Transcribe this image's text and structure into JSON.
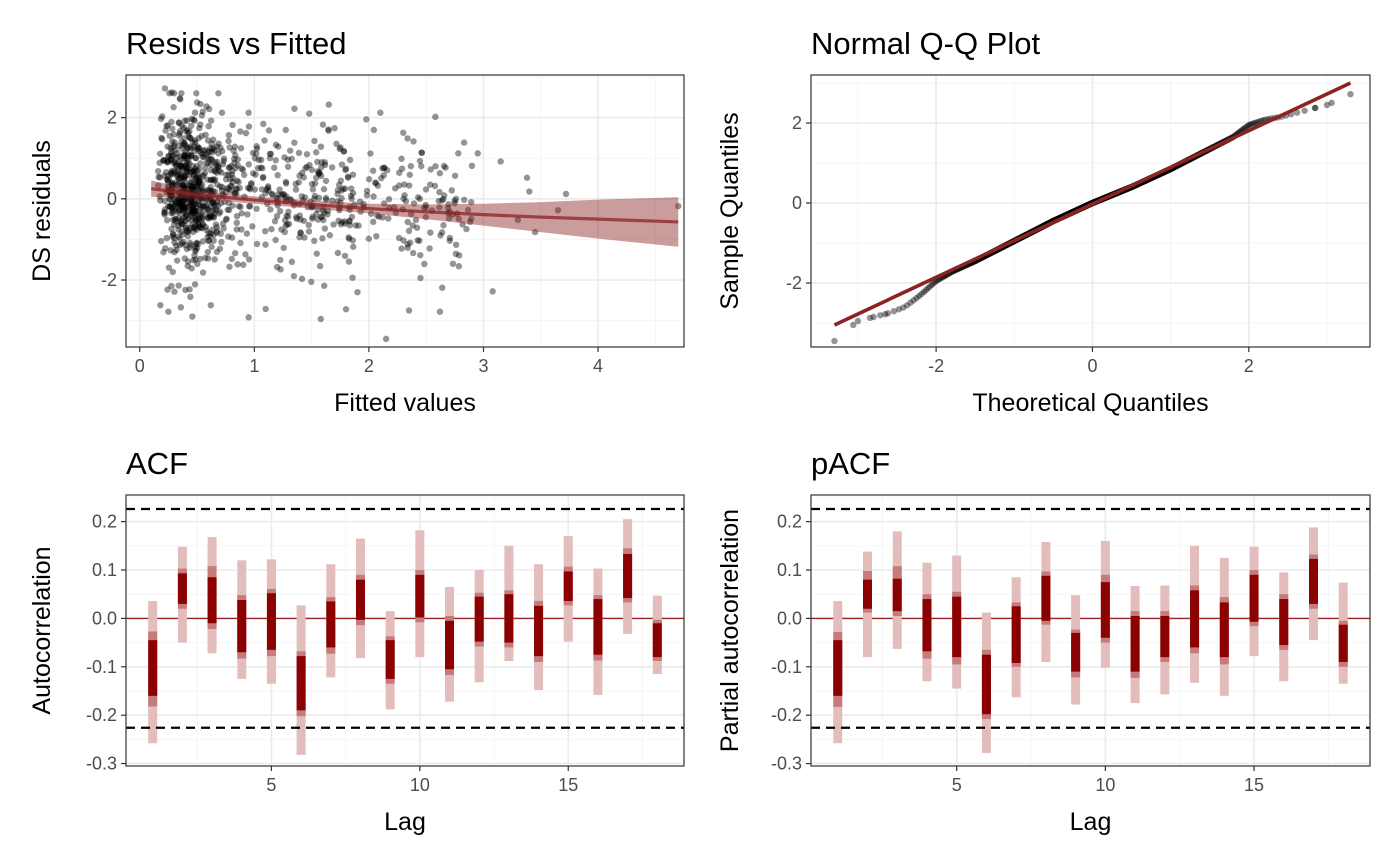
{
  "colors": {
    "accent": "#8b0000",
    "band": "#c88e8e",
    "ci_light": "#e3bcbc",
    "ci_mid": "#c57b7b",
    "line_dark": "#8b2323",
    "points": "#000000",
    "grid_major": "#ebebeb",
    "grid_minor": "#f5f5f5",
    "panel_border": "#333333"
  },
  "chart_data": [
    {
      "id": "resids",
      "type": "scatter",
      "title": "Resids vs Fitted",
      "xlabel": "Fitted values",
      "ylabel": "DS residuals",
      "xlim": [
        -0.12,
        4.75
      ],
      "ylim": [
        -3.65,
        3.05
      ],
      "xticks": [
        0,
        1,
        2,
        3,
        4
      ],
      "yticks": [
        -2,
        0,
        2
      ],
      "xtick_labels": [
        "0",
        "1",
        "2",
        "3",
        "4"
      ],
      "ytick_labels": [
        "-2",
        "0",
        "2"
      ],
      "grid": true,
      "outliers": [
        [
          0.22,
          2.72
        ],
        [
          0.28,
          2.62
        ],
        [
          0.18,
          -2.62
        ],
        [
          0.25,
          -2.78
        ],
        [
          0.62,
          -2.62
        ],
        [
          0.95,
          -2.92
        ],
        [
          1.58,
          -2.96
        ],
        [
          2.15,
          -3.45
        ],
        [
          1.35,
          2.22
        ],
        [
          1.65,
          2.32
        ],
        [
          0.95,
          2.12
        ],
        [
          2.1,
          2.12
        ],
        [
          2.58,
          2.02
        ],
        [
          2.78,
          1.12
        ],
        [
          2.95,
          1.12
        ],
        [
          3.15,
          0.92
        ],
        [
          3.38,
          0.52
        ],
        [
          3.4,
          0.18
        ],
        [
          3.3,
          -0.52
        ],
        [
          3.45,
          -0.82
        ],
        [
          3.72,
          0.12
        ],
        [
          3.65,
          -0.28
        ],
        [
          4.7,
          -0.18
        ],
        [
          3.08,
          -2.28
        ],
        [
          2.35,
          -2.75
        ],
        [
          2.62,
          -2.78
        ],
        [
          1.8,
          -2.72
        ],
        [
          1.9,
          -2.3
        ],
        [
          2.45,
          -1.95
        ]
      ],
      "smooth": {
        "x": [
          0.1,
          0.5,
          1.0,
          1.5,
          2.0,
          2.5,
          3.0,
          3.5,
          4.0,
          4.7
        ],
        "y": [
          0.25,
          0.1,
          -0.03,
          -0.14,
          -0.24,
          -0.32,
          -0.39,
          -0.45,
          -0.5,
          -0.57
        ],
        "lower": [
          0.05,
          0.0,
          -0.12,
          -0.24,
          -0.36,
          -0.5,
          -0.66,
          -0.82,
          -0.98,
          -1.18
        ],
        "upper": [
          0.45,
          0.2,
          0.06,
          -0.04,
          -0.12,
          -0.14,
          -0.12,
          -0.08,
          -0.02,
          0.04
        ]
      }
    },
    {
      "id": "qq",
      "type": "scatter",
      "title": "Normal Q-Q Plot",
      "xlabel": "Theoretical Quantiles",
      "ylabel": "Sample Quantiles",
      "xlim": [
        -3.6,
        3.55
      ],
      "ylim": [
        -3.6,
        3.2
      ],
      "xticks": [
        -2,
        0,
        2
      ],
      "yticks": [
        -2,
        0,
        2
      ],
      "xtick_labels": [
        "-2",
        "0",
        "2"
      ],
      "ytick_labels": [
        "-2",
        "0",
        "2"
      ],
      "grid": true,
      "reference_line": [
        [
          -3.3,
          -3.05
        ],
        [
          3.3,
          3.0
        ]
      ],
      "qq_curve": {
        "x": [
          -3.3,
          -3.0,
          -2.8,
          -2.6,
          -2.4,
          -2.2,
          -2.0,
          -1.8,
          -1.5,
          -1.0,
          -0.5,
          0.0,
          0.5,
          1.0,
          1.5,
          1.8,
          2.0,
          2.2,
          2.4,
          2.6,
          2.8,
          3.0,
          3.3
        ],
        "y": [
          -3.45,
          -2.95,
          -2.85,
          -2.75,
          -2.6,
          -2.3,
          -1.95,
          -1.72,
          -1.45,
          -0.95,
          -0.45,
          0.0,
          0.4,
          0.85,
          1.35,
          1.65,
          1.95,
          2.08,
          2.15,
          2.25,
          2.35,
          2.45,
          2.72
        ]
      }
    },
    {
      "id": "acf",
      "type": "bar",
      "title": "ACF",
      "xlabel": "Lag",
      "ylabel": "Autocorrelation",
      "xlim": [
        0.1,
        18.9
      ],
      "ylim": [
        -0.305,
        0.255
      ],
      "xticks": [
        5,
        10,
        15
      ],
      "yticks": [
        0.2,
        0.1,
        0.0,
        -0.1,
        -0.2,
        -0.3
      ],
      "xtick_labels": [
        "5",
        "10",
        "15"
      ],
      "ytick_labels": [
        "0.2",
        "0.1",
        "0.0",
        "-0.1",
        "-0.2",
        "-0.3"
      ],
      "threshold": 0.226,
      "grid": true,
      "lags": [
        1,
        2,
        3,
        4,
        5,
        6,
        7,
        8,
        9,
        10,
        11,
        12,
        13,
        14,
        15,
        16,
        17,
        18
      ],
      "ci_outer": [
        [
          -0.258,
          0.036
        ],
        [
          -0.05,
          0.148
        ],
        [
          -0.072,
          0.168
        ],
        [
          -0.125,
          0.12
        ],
        [
          -0.135,
          0.122
        ],
        [
          -0.282,
          0.027
        ],
        [
          -0.122,
          0.112
        ],
        [
          -0.082,
          0.165
        ],
        [
          -0.188,
          0.015
        ],
        [
          -0.08,
          0.182
        ],
        [
          -0.172,
          0.065
        ],
        [
          -0.132,
          0.1
        ],
        [
          -0.088,
          0.15
        ],
        [
          -0.148,
          0.112
        ],
        [
          -0.048,
          0.17
        ],
        [
          -0.158,
          0.103
        ],
        [
          -0.032,
          0.205
        ],
        [
          -0.115,
          0.047
        ]
      ],
      "ci_mid": [
        [
          -0.182,
          -0.027
        ],
        [
          0.02,
          0.103
        ],
        [
          -0.022,
          0.108
        ],
        [
          -0.083,
          0.048
        ],
        [
          -0.078,
          0.061
        ],
        [
          -0.202,
          -0.068
        ],
        [
          -0.073,
          0.044
        ],
        [
          -0.014,
          0.09
        ],
        [
          -0.135,
          -0.037
        ],
        [
          -0.008,
          0.1
        ],
        [
          -0.117,
          0.005
        ],
        [
          -0.058,
          0.053
        ],
        [
          -0.06,
          0.058
        ],
        [
          -0.09,
          0.036
        ],
        [
          0.027,
          0.107
        ],
        [
          -0.087,
          0.048
        ],
        [
          0.033,
          0.145
        ],
        [
          -0.088,
          -0.003
        ]
      ],
      "ci_inner": [
        [
          -0.16,
          -0.045
        ],
        [
          0.03,
          0.093
        ],
        [
          -0.01,
          0.085
        ],
        [
          -0.07,
          0.038
        ],
        [
          -0.065,
          0.052
        ],
        [
          -0.19,
          -0.078
        ],
        [
          -0.06,
          0.035
        ],
        [
          -0.003,
          0.08
        ],
        [
          -0.125,
          -0.045
        ],
        [
          0.002,
          0.09
        ],
        [
          -0.105,
          -0.005
        ],
        [
          -0.048,
          0.045
        ],
        [
          -0.05,
          0.05
        ],
        [
          -0.078,
          0.026
        ],
        [
          0.036,
          0.097
        ],
        [
          -0.075,
          0.04
        ],
        [
          0.042,
          0.133
        ],
        [
          -0.08,
          -0.01
        ]
      ]
    },
    {
      "id": "pacf",
      "type": "bar",
      "title": "pACF",
      "xlabel": "Lag",
      "ylabel": "Partial autocorrelation",
      "xlim": [
        0.1,
        18.9
      ],
      "ylim": [
        -0.305,
        0.255
      ],
      "xticks": [
        5,
        10,
        15
      ],
      "yticks": [
        0.2,
        0.1,
        0.0,
        -0.1,
        -0.2,
        -0.3
      ],
      "xtick_labels": [
        "5",
        "10",
        "15"
      ],
      "ytick_labels": [
        "0.2",
        "0.1",
        "0.0",
        "-0.1",
        "-0.2",
        "-0.3"
      ],
      "threshold": 0.226,
      "grid": true,
      "lags": [
        1,
        2,
        3,
        4,
        5,
        6,
        7,
        8,
        9,
        10,
        11,
        12,
        13,
        14,
        15,
        16,
        17,
        18
      ],
      "ci_outer": [
        [
          -0.258,
          0.036
        ],
        [
          -0.08,
          0.138
        ],
        [
          -0.063,
          0.18
        ],
        [
          -0.13,
          0.115
        ],
        [
          -0.145,
          0.13
        ],
        [
          -0.278,
          0.012
        ],
        [
          -0.163,
          0.085
        ],
        [
          -0.09,
          0.158
        ],
        [
          -0.178,
          0.048
        ],
        [
          -0.102,
          0.16
        ],
        [
          -0.175,
          0.067
        ],
        [
          -0.157,
          0.068
        ],
        [
          -0.133,
          0.15
        ],
        [
          -0.16,
          0.125
        ],
        [
          -0.078,
          0.148
        ],
        [
          -0.13,
          0.095
        ],
        [
          -0.045,
          0.188
        ],
        [
          -0.135,
          0.074
        ]
      ],
      "ci_mid": [
        [
          -0.183,
          -0.028
        ],
        [
          0.012,
          0.098
        ],
        [
          0.005,
          0.108
        ],
        [
          -0.083,
          0.05
        ],
        [
          -0.095,
          0.055
        ],
        [
          -0.208,
          -0.065
        ],
        [
          -0.1,
          0.033
        ],
        [
          -0.013,
          0.097
        ],
        [
          -0.122,
          -0.023
        ],
        [
          -0.05,
          0.09
        ],
        [
          -0.123,
          0.015
        ],
        [
          -0.09,
          0.015
        ],
        [
          -0.072,
          0.068
        ],
        [
          -0.095,
          0.044
        ],
        [
          -0.016,
          0.1
        ],
        [
          -0.065,
          0.05
        ],
        [
          0.02,
          0.132
        ],
        [
          -0.1,
          -0.005
        ]
      ],
      "ci_inner": [
        [
          -0.16,
          -0.045
        ],
        [
          0.02,
          0.08
        ],
        [
          0.015,
          0.082
        ],
        [
          -0.068,
          0.04
        ],
        [
          -0.08,
          0.045
        ],
        [
          -0.198,
          -0.075
        ],
        [
          -0.092,
          0.025
        ],
        [
          -0.005,
          0.088
        ],
        [
          -0.11,
          -0.03
        ],
        [
          -0.04,
          0.075
        ],
        [
          -0.11,
          0.005
        ],
        [
          -0.08,
          0.005
        ],
        [
          -0.06,
          0.058
        ],
        [
          -0.08,
          0.033
        ],
        [
          -0.007,
          0.09
        ],
        [
          -0.055,
          0.04
        ],
        [
          0.03,
          0.123
        ],
        [
          -0.09,
          -0.013
        ]
      ]
    }
  ]
}
